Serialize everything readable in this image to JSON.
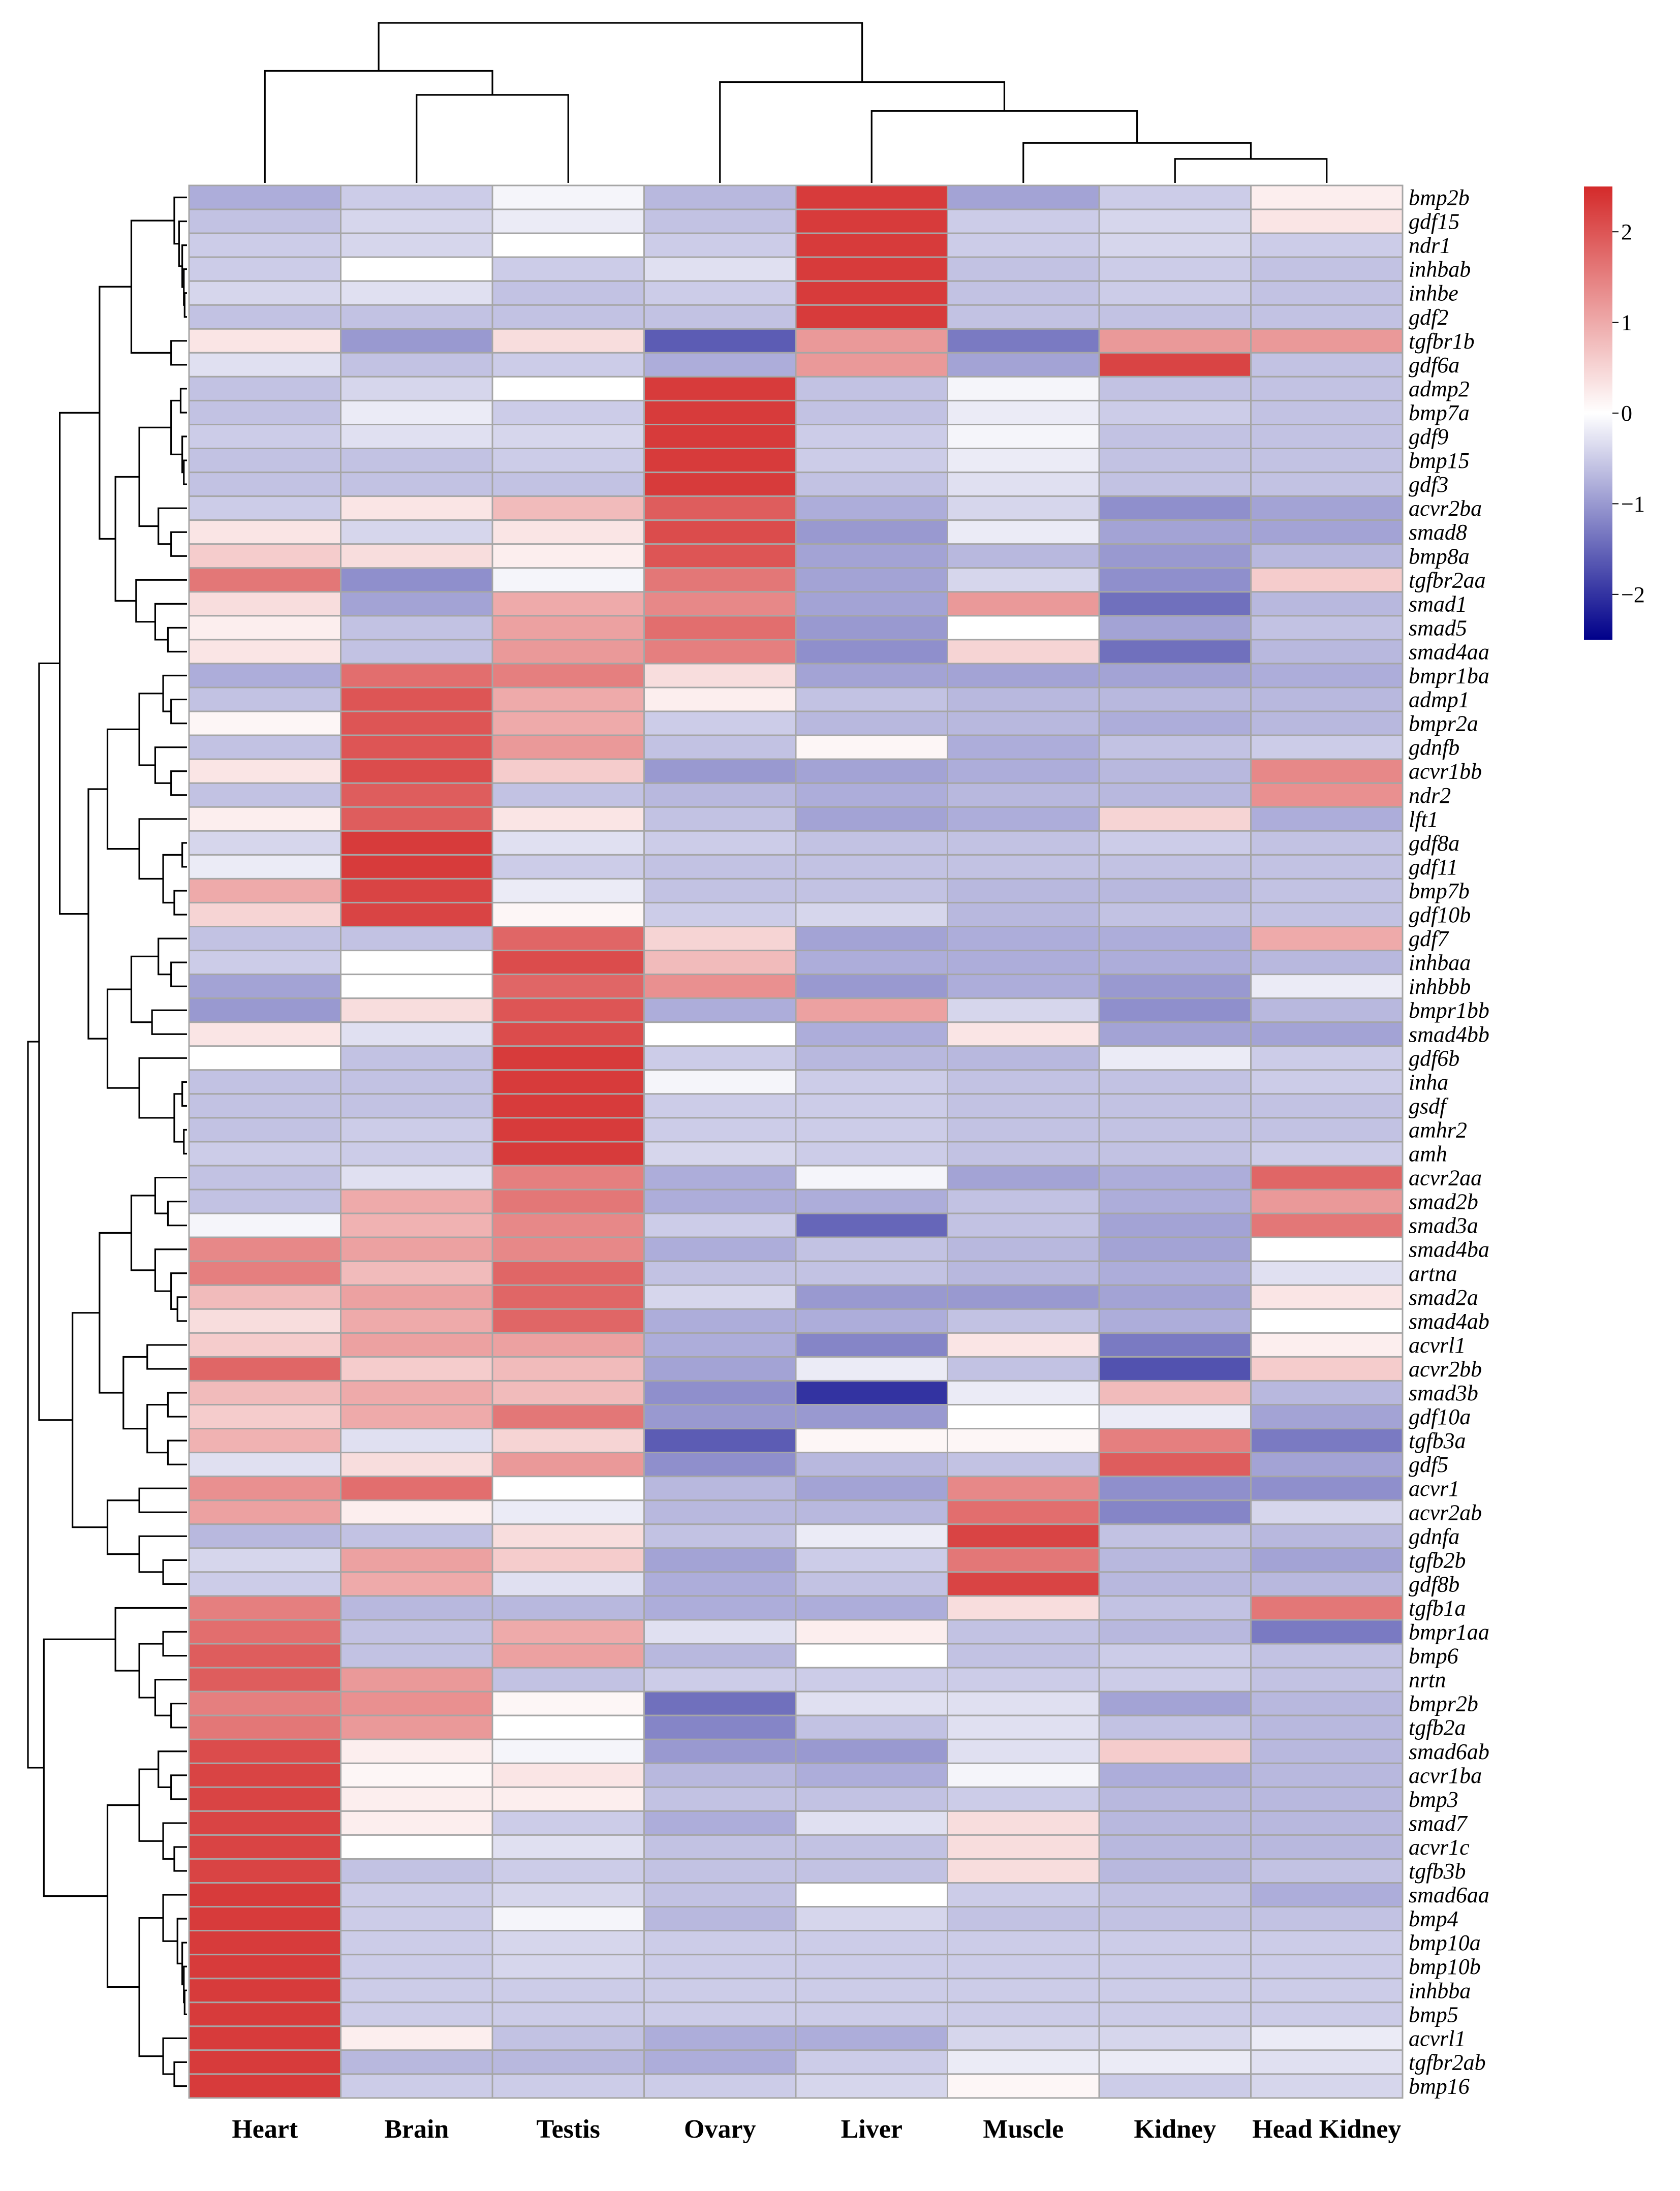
{
  "chart_data": {
    "type": "heatmap",
    "title": "",
    "columns": [
      "Heart",
      "Brain",
      "Testis",
      "Ovary",
      "Liver",
      "Muscle",
      "Kidney",
      "Head Kidney"
    ],
    "rows": [
      "bmp2b",
      "gdf15",
      "ndr1",
      "inhbab",
      "inhbe",
      "gdf2",
      "tgfbr1b",
      "gdf6a",
      "admp2",
      "bmp7a",
      "gdf9",
      "bmp15",
      "gdf3",
      "acvr2ba",
      "smad8",
      "bmp8a",
      "tgfbr2aa",
      "smad1",
      "smad5",
      "smad4aa",
      "bmpr1ba",
      "admp1",
      "bmpr2a",
      "gdnfb",
      "acvr1bb",
      "ndr2",
      "lft1",
      "gdf8a",
      "gdf11",
      "bmp7b",
      "gdf10b",
      "gdf7",
      "inhbaa",
      "inhbbb",
      "bmpr1bb",
      "smad4bb",
      "gdf6b",
      "inha",
      "gsdf",
      "amhr2",
      "amh",
      "acvr2aa",
      "smad2b",
      "smad3a",
      "smad4ba",
      "artna",
      "smad2a",
      "smad4ab",
      "acvrl1",
      "acvr2bb",
      "smad3b",
      "gdf10a",
      "tgfb3a",
      "gdf5",
      "acvr1",
      "acvr2ab",
      "gdnfa",
      "tgfb2b",
      "gdf8b",
      "tgfb1a",
      "bmpr1aa",
      "bmp6",
      "nrtn",
      "bmpr2b",
      "tgfb2a",
      "smad6ab",
      "acvr1ba",
      "bmp3",
      "smad7",
      "acvr1c",
      "tgfb3b",
      "smad6aa",
      "bmp4",
      "bmp10a",
      "bmp10b",
      "inhbba",
      "bmp5",
      "acvrl1",
      "tgfbr2ab",
      "bmp16"
    ],
    "values": [
      [
        -0.8,
        -0.5,
        -0.1,
        -0.7,
        2.3,
        -0.9,
        -0.5,
        0.2
      ],
      [
        -0.6,
        -0.4,
        -0.2,
        -0.6,
        2.3,
        -0.5,
        -0.4,
        0.3
      ],
      [
        -0.5,
        -0.4,
        0.0,
        -0.5,
        2.3,
        -0.5,
        -0.4,
        -0.5
      ],
      [
        -0.5,
        0.0,
        -0.5,
        -0.3,
        2.3,
        -0.6,
        -0.5,
        -0.6
      ],
      [
        -0.4,
        -0.3,
        -0.6,
        -0.5,
        2.3,
        -0.6,
        -0.5,
        -0.6
      ],
      [
        -0.6,
        -0.6,
        -0.6,
        -0.6,
        2.3,
        -0.6,
        -0.6,
        -0.6
      ],
      [
        0.3,
        -1.0,
        0.4,
        -1.6,
        1.2,
        -1.3,
        1.2,
        1.2
      ],
      [
        -0.3,
        -0.6,
        -0.5,
        -0.8,
        1.2,
        -0.9,
        2.2,
        -0.6
      ],
      [
        -0.6,
        -0.4,
        0.0,
        2.3,
        -0.6,
        -0.1,
        -0.6,
        -0.6
      ],
      [
        -0.6,
        -0.2,
        -0.5,
        2.3,
        -0.6,
        -0.2,
        -0.5,
        -0.6
      ],
      [
        -0.5,
        -0.3,
        -0.4,
        2.3,
        -0.5,
        -0.1,
        -0.6,
        -0.6
      ],
      [
        -0.6,
        -0.6,
        -0.5,
        2.3,
        -0.5,
        -0.2,
        -0.6,
        -0.6
      ],
      [
        -0.6,
        -0.6,
        -0.6,
        2.3,
        -0.6,
        -0.3,
        -0.6,
        -0.6
      ],
      [
        -0.5,
        0.3,
        0.8,
        1.9,
        -0.8,
        -0.4,
        -1.1,
        -0.9
      ],
      [
        0.3,
        -0.4,
        0.3,
        2.1,
        -1.0,
        -0.2,
        -0.9,
        -0.9
      ],
      [
        0.6,
        0.4,
        0.2,
        2.0,
        -0.9,
        -0.7,
        -1.0,
        -0.7
      ],
      [
        1.6,
        -1.1,
        -0.1,
        1.6,
        -0.9,
        -0.4,
        -1.1,
        0.6
      ],
      [
        0.4,
        -0.9,
        1.0,
        1.4,
        -0.9,
        1.2,
        -1.4,
        -0.7
      ],
      [
        0.2,
        -0.6,
        1.1,
        1.7,
        -1.0,
        0.0,
        -0.9,
        -0.6
      ],
      [
        0.3,
        -0.6,
        1.2,
        1.5,
        -1.1,
        0.5,
        -1.4,
        -0.7
      ],
      [
        -0.8,
        1.7,
        1.5,
        0.4,
        -0.9,
        -0.9,
        -0.9,
        -0.8
      ],
      [
        -0.6,
        2.0,
        1.0,
        0.2,
        -0.6,
        -0.7,
        -0.7,
        -0.7
      ],
      [
        0.1,
        2.0,
        1.0,
        -0.5,
        -0.7,
        -0.7,
        -0.8,
        -0.7
      ],
      [
        -0.6,
        2.0,
        1.2,
        -0.6,
        0.1,
        -0.8,
        -0.6,
        -0.5
      ],
      [
        0.3,
        2.1,
        0.6,
        -1.0,
        -0.9,
        -0.8,
        -0.7,
        1.4
      ],
      [
        -0.6,
        1.9,
        -0.6,
        -0.7,
        -0.8,
        -0.7,
        -0.7,
        1.3
      ],
      [
        0.2,
        1.9,
        0.3,
        -0.6,
        -0.9,
        -0.8,
        0.5,
        -0.8
      ],
      [
        -0.4,
        2.3,
        -0.3,
        -0.5,
        -0.6,
        -0.6,
        -0.5,
        -0.6
      ],
      [
        -0.2,
        2.3,
        -0.5,
        -0.6,
        -0.6,
        -0.6,
        -0.6,
        -0.6
      ],
      [
        1.0,
        2.2,
        -0.2,
        -0.6,
        -0.6,
        -0.7,
        -0.7,
        -0.6
      ],
      [
        0.5,
        2.2,
        0.1,
        -0.5,
        -0.4,
        -0.7,
        -0.6,
        -0.6
      ],
      [
        -0.6,
        -0.6,
        1.8,
        0.5,
        -0.9,
        -0.8,
        -0.8,
        1.0
      ],
      [
        -0.5,
        0.0,
        2.1,
        0.8,
        -0.8,
        -0.8,
        -0.8,
        -0.7
      ],
      [
        -0.9,
        0.0,
        1.8,
        1.3,
        -1.0,
        -0.8,
        -1.0,
        -0.2
      ],
      [
        -1.0,
        0.4,
        2.0,
        -0.8,
        1.1,
        -0.4,
        -1.1,
        -0.7
      ],
      [
        0.3,
        -0.3,
        2.1,
        0.0,
        -0.8,
        0.3,
        -0.9,
        -0.9
      ],
      [
        0.0,
        -0.6,
        2.3,
        -0.5,
        -0.7,
        -0.7,
        -0.2,
        -0.5
      ],
      [
        -0.6,
        -0.6,
        2.3,
        -0.1,
        -0.5,
        -0.6,
        -0.6,
        -0.5
      ],
      [
        -0.6,
        -0.6,
        2.3,
        -0.5,
        -0.5,
        -0.6,
        -0.6,
        -0.6
      ],
      [
        -0.6,
        -0.5,
        2.3,
        -0.5,
        -0.5,
        -0.6,
        -0.6,
        -0.6
      ],
      [
        -0.5,
        -0.5,
        2.3,
        -0.4,
        -0.5,
        -0.6,
        -0.6,
        -0.5
      ],
      [
        -0.6,
        -0.3,
        1.5,
        -0.8,
        -0.1,
        -0.9,
        -0.8,
        1.8
      ],
      [
        -0.6,
        1.0,
        1.6,
        -0.8,
        -0.8,
        -0.6,
        -0.8,
        1.2
      ],
      [
        -0.1,
        0.9,
        1.4,
        -0.5,
        -1.5,
        -0.6,
        -0.9,
        1.6
      ],
      [
        1.4,
        1.1,
        1.4,
        -0.8,
        -0.6,
        -0.7,
        -0.9,
        0.0
      ],
      [
        1.5,
        0.8,
        1.8,
        -0.6,
        -0.6,
        -0.7,
        -0.8,
        -0.3
      ],
      [
        0.8,
        1.1,
        1.8,
        -0.4,
        -1.0,
        -1.0,
        -0.9,
        0.3
      ],
      [
        0.4,
        1.0,
        1.8,
        -0.8,
        -0.8,
        -0.6,
        -0.8,
        0.0
      ],
      [
        0.6,
        1.1,
        1.1,
        -0.8,
        -1.2,
        0.3,
        -1.3,
        0.2
      ],
      [
        1.8,
        0.6,
        0.8,
        -0.9,
        -0.2,
        -0.6,
        -1.7,
        0.6
      ],
      [
        0.8,
        1.0,
        0.8,
        -1.1,
        -2.0,
        -0.2,
        0.8,
        -0.7
      ],
      [
        0.6,
        1.0,
        1.6,
        -1.0,
        -1.0,
        0.0,
        -0.2,
        -0.9
      ],
      [
        0.9,
        -0.3,
        0.5,
        -1.6,
        0.1,
        0.1,
        1.5,
        -1.3
      ],
      [
        -0.3,
        0.4,
        1.2,
        -1.1,
        -0.7,
        -0.6,
        1.9,
        -0.9
      ],
      [
        1.3,
        1.7,
        0.0,
        -0.7,
        -0.9,
        1.4,
        -1.1,
        -1.1
      ],
      [
        1.1,
        0.2,
        -0.2,
        -0.7,
        -0.7,
        1.7,
        -1.2,
        -0.4
      ],
      [
        -0.7,
        -0.6,
        0.4,
        -0.6,
        -0.2,
        2.2,
        -0.6,
        -0.7
      ],
      [
        -0.4,
        1.1,
        0.6,
        -0.9,
        -0.5,
        1.6,
        -0.7,
        -0.9
      ],
      [
        -0.5,
        1.0,
        -0.3,
        -0.8,
        -0.6,
        2.2,
        -0.7,
        -0.7
      ],
      [
        1.5,
        -0.7,
        -0.7,
        -0.8,
        -0.8,
        0.4,
        -0.6,
        1.6
      ],
      [
        1.7,
        -0.6,
        1.0,
        -0.3,
        0.2,
        -0.6,
        -0.7,
        -1.3
      ],
      [
        1.9,
        -0.6,
        1.1,
        -0.7,
        0.0,
        -0.6,
        -0.5,
        -0.6
      ],
      [
        1.9,
        1.2,
        -0.6,
        -0.5,
        -0.5,
        -0.5,
        -0.5,
        -0.6
      ],
      [
        1.5,
        1.3,
        0.1,
        -1.4,
        -0.3,
        -0.3,
        -0.9,
        -0.7
      ],
      [
        1.6,
        1.2,
        0.0,
        -1.2,
        -0.6,
        -0.3,
        -0.6,
        -0.7
      ],
      [
        2.1,
        0.2,
        -0.1,
        -1.0,
        -1.0,
        -0.3,
        0.6,
        -0.7
      ],
      [
        2.2,
        0.1,
        0.3,
        -0.7,
        -0.8,
        -0.1,
        -0.8,
        -0.7
      ],
      [
        2.2,
        0.2,
        0.2,
        -0.6,
        -0.6,
        -0.5,
        -0.7,
        -0.7
      ],
      [
        2.2,
        0.2,
        -0.5,
        -0.8,
        -0.3,
        0.4,
        -0.7,
        -0.7
      ],
      [
        2.2,
        0.0,
        -0.3,
        -0.6,
        -0.6,
        0.4,
        -0.7,
        -0.7
      ],
      [
        2.2,
        -0.6,
        -0.5,
        -0.6,
        -0.6,
        0.4,
        -0.7,
        -0.6
      ],
      [
        2.3,
        -0.5,
        -0.4,
        -0.6,
        0.0,
        -0.5,
        -0.6,
        -0.8
      ],
      [
        2.3,
        -0.5,
        -0.1,
        -0.7,
        -0.4,
        -0.6,
        -0.6,
        -0.6
      ],
      [
        2.3,
        -0.5,
        -0.4,
        -0.5,
        -0.5,
        -0.5,
        -0.5,
        -0.5
      ],
      [
        2.3,
        -0.5,
        -0.4,
        -0.5,
        -0.5,
        -0.5,
        -0.5,
        -0.5
      ],
      [
        2.3,
        -0.5,
        -0.5,
        -0.5,
        -0.5,
        -0.5,
        -0.5,
        -0.5
      ],
      [
        2.3,
        -0.5,
        -0.5,
        -0.5,
        -0.5,
        -0.5,
        -0.5,
        -0.5
      ],
      [
        2.3,
        0.2,
        -0.6,
        -0.8,
        -0.8,
        -0.4,
        -0.4,
        -0.2
      ],
      [
        2.3,
        -0.7,
        -0.7,
        -0.8,
        -0.5,
        -0.2,
        -0.2,
        -0.3
      ],
      [
        2.3,
        -0.5,
        -0.5,
        -0.5,
        -0.4,
        0.1,
        -0.5,
        -0.4
      ]
    ],
    "legend": {
      "type": "colorbar",
      "ticks": [
        2,
        1,
        0,
        -1,
        -2
      ],
      "tick_labels": [
        "2",
        "1",
        "0",
        "−1",
        "−2"
      ],
      "range": [
        -2.5,
        2.5
      ],
      "colors": {
        "low": "#00008a",
        "mid": "#ffffff",
        "high": "#d42a2a"
      }
    },
    "column_dendrogram": "hierarchical clustering of tissues",
    "row_dendrogram": "hierarchical clustering of genes"
  }
}
